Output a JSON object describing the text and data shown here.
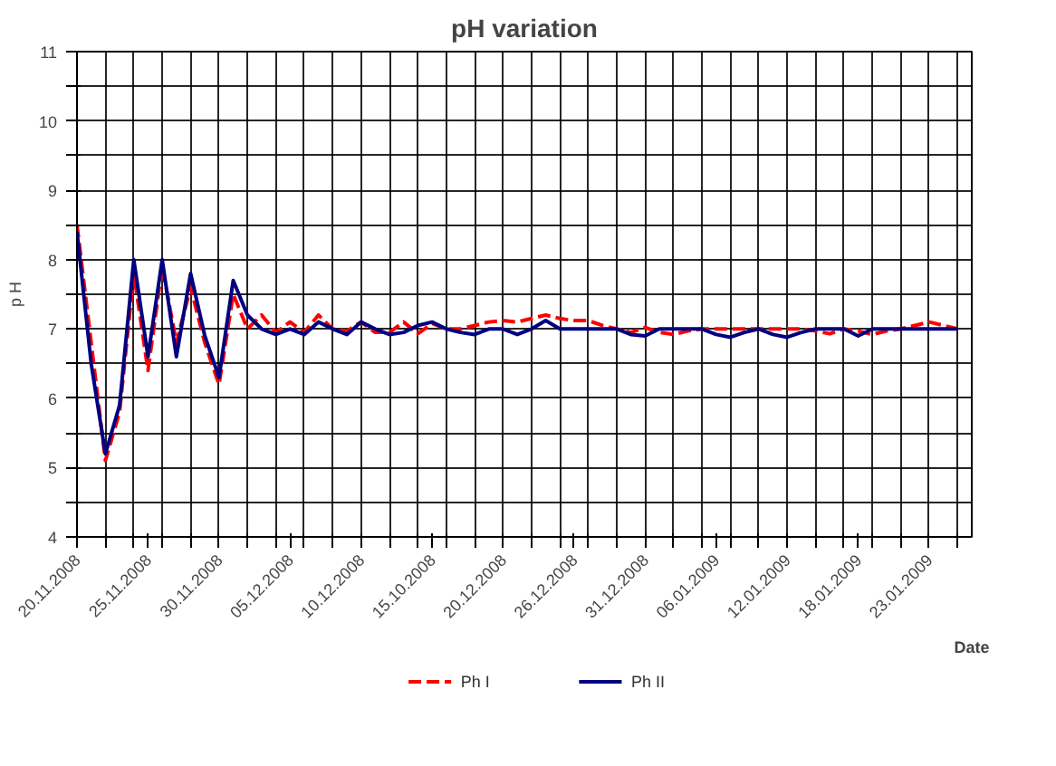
{
  "chart_data": {
    "type": "line",
    "title": "pH variation",
    "xlabel": "Date",
    "ylabel": "p H",
    "categories": [
      "20.11.2008",
      null,
      null,
      null,
      null,
      "25.11.2008",
      null,
      null,
      null,
      null,
      "30.11.2008",
      null,
      null,
      null,
      null,
      "05.12.2008",
      null,
      null,
      null,
      null,
      "10.12.2008",
      null,
      null,
      null,
      null,
      "15.10.2008",
      null,
      null,
      null,
      null,
      "20.12.2008",
      null,
      null,
      null,
      null,
      "26.12.2008",
      null,
      null,
      null,
      null,
      "31.12.2008",
      null,
      null,
      null,
      null,
      "06.01.2009",
      null,
      null,
      null,
      null,
      "12.01.2009",
      null,
      null,
      null,
      null,
      "18.01.2009",
      null,
      null,
      null,
      null,
      "23.01.2009",
      null,
      null
    ],
    "ylim": [
      4,
      11
    ],
    "yticks": [
      4,
      {
        "value": 4.5,
        "label": null
      },
      5,
      {
        "value": 5.5,
        "label": null
      },
      6,
      {
        "value": 6.5,
        "label": null
      },
      7,
      {
        "value": 7.5,
        "label": null
      },
      8,
      {
        "value": 8.5,
        "label": null
      },
      9,
      {
        "value": 9.5,
        "label": null
      },
      10,
      {
        "value": 10.5,
        "label": null
      },
      11
    ],
    "grid": true,
    "legend": "bottom",
    "series": [
      {
        "name": "Ph I",
        "color": "#ff0000",
        "line_style": "dashed",
        "values": [
          8.5,
          6.8,
          5.1,
          5.8,
          7.8,
          6.4,
          7.9,
          6.8,
          7.6,
          6.8,
          6.2,
          7.5,
          7.0,
          7.2,
          6.95,
          7.1,
          6.95,
          7.2,
          7.0,
          6.97,
          7.1,
          6.95,
          6.95,
          7.1,
          6.93,
          7.08,
          7.0,
          7.0,
          7.05,
          7.1,
          7.12,
          7.1,
          7.15,
          7.2,
          7.15,
          7.12,
          7.12,
          7.05,
          7.0,
          6.95,
          7.02,
          6.95,
          6.92,
          6.97,
          7.0,
          7.0,
          7.0,
          7.0,
          7.0,
          7.0,
          7.0,
          7.0,
          6.97,
          6.93,
          7.0,
          6.97,
          6.92,
          6.97,
          7.0,
          7.05,
          7.1,
          7.05,
          7.0
        ]
      },
      {
        "name": "Ph II",
        "color": "#000080",
        "line_style": "solid",
        "values": [
          8.4,
          6.5,
          5.2,
          5.9,
          8.0,
          6.6,
          8.0,
          6.6,
          7.8,
          6.9,
          6.3,
          7.7,
          7.2,
          7.0,
          6.92,
          7.0,
          6.92,
          7.1,
          7.0,
          6.92,
          7.1,
          7.0,
          6.92,
          6.95,
          7.05,
          7.1,
          7.0,
          6.95,
          6.92,
          7.0,
          7.0,
          6.92,
          7.0,
          7.12,
          7.0,
          7.0,
          7.0,
          7.0,
          7.0,
          6.92,
          6.9,
          7.0,
          7.0,
          7.0,
          7.0,
          6.92,
          6.88,
          6.95,
          7.0,
          6.92,
          6.88,
          6.95,
          7.0,
          7.0,
          7.0,
          6.9,
          7.0,
          7.0,
          7.0,
          7.0,
          7.0,
          7.0,
          7.0
        ]
      }
    ]
  }
}
